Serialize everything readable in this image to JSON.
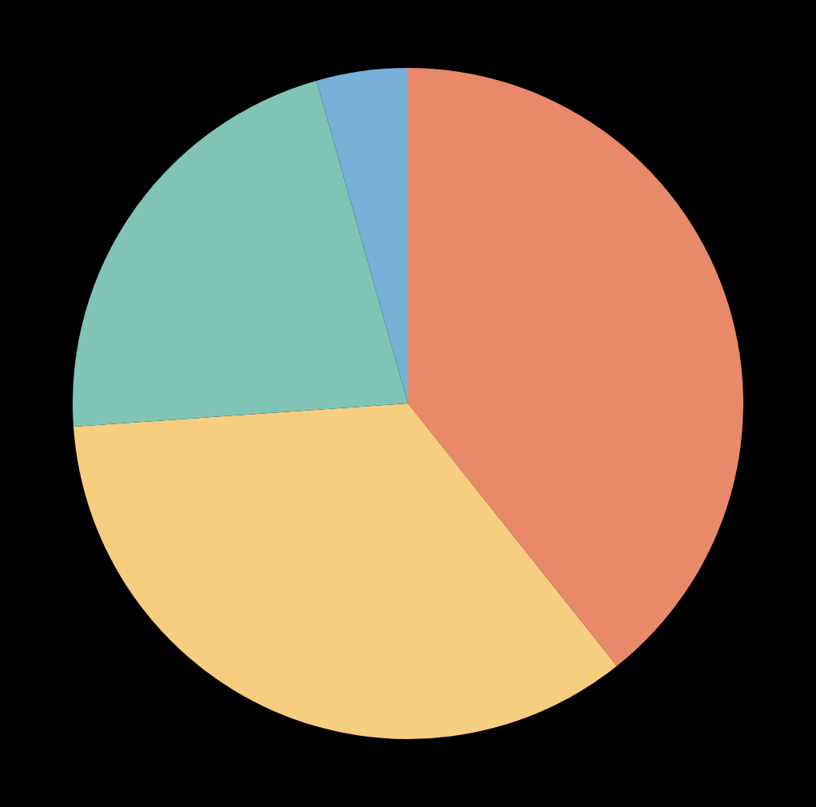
{
  "chart_data": {
    "type": "pie",
    "categories": [
      null,
      null,
      null,
      null
    ],
    "values": [
      39.3,
      34.6,
      21.7,
      4.4
    ],
    "colors": [
      "#e8896a",
      "#f7cd7f",
      "#7fc4b4",
      "#78b0d8"
    ],
    "legend": false
  }
}
